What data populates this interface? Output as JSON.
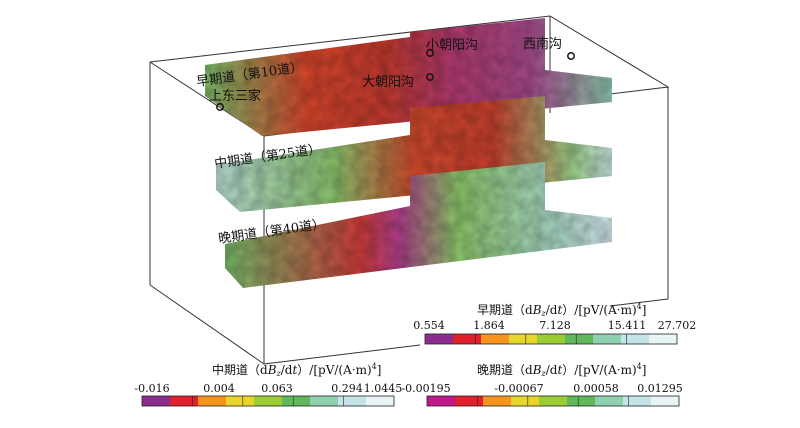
{
  "slices": {
    "early": "早期道（第10道）",
    "mid": "中期道（第25道）",
    "late": "晚期道（第40道）"
  },
  "places": {
    "shangdongsanjia": "上东三家",
    "dachaoyanggou": "大朝阳沟",
    "xiaochaoyanggou": "小朝阳沟",
    "xinangou": "西南沟"
  },
  "legends": {
    "early": {
      "prefix": "早期道（d",
      "b": "B",
      "sub": "z",
      "mid": "/d",
      "t": "t",
      "suffix": "）/[pV/(A·m)",
      "sup": "4",
      "close": "]",
      "ticks": [
        "0.554",
        "1.864",
        "7.128",
        "15.411",
        "27.702"
      ],
      "colors": [
        "#8b2d8f",
        "#e0202a",
        "#f7941d",
        "#e8d52a",
        "#9acd32",
        "#5fb85a",
        "#8fd0b0",
        "#c4e4ea",
        "#e8f4f6"
      ]
    },
    "mid": {
      "prefix": "中期道（d",
      "b": "B",
      "sub": "z",
      "mid": "/d",
      "t": "t",
      "suffix": "）/[pV/(A·m)",
      "sup": "4",
      "close": "]",
      "ticks": [
        "-0.016",
        "0.004",
        "0.063",
        "0.294",
        "1.0445"
      ],
      "colors": [
        "#8b2d8f",
        "#e0202a",
        "#f7941d",
        "#e8d52a",
        "#9acd32",
        "#5fb85a",
        "#8fd0b0",
        "#c4e4ea",
        "#e8f4f6"
      ]
    },
    "late": {
      "prefix": "晚期道（d",
      "b": "B",
      "sub": "z",
      "mid": "/d",
      "t": "t",
      "suffix": "）/[pV/(A·m)",
      "sup": "4",
      "close": "]",
      "ticks": [
        "-0.00195",
        "-0.00067",
        "0.00058",
        "0.01295"
      ],
      "colors": [
        "#c0188a",
        "#e0202a",
        "#f7941d",
        "#e8d52a",
        "#9acd32",
        "#5fb85a",
        "#8fd0b0",
        "#c4e4ea",
        "#e8f4f6"
      ]
    }
  }
}
